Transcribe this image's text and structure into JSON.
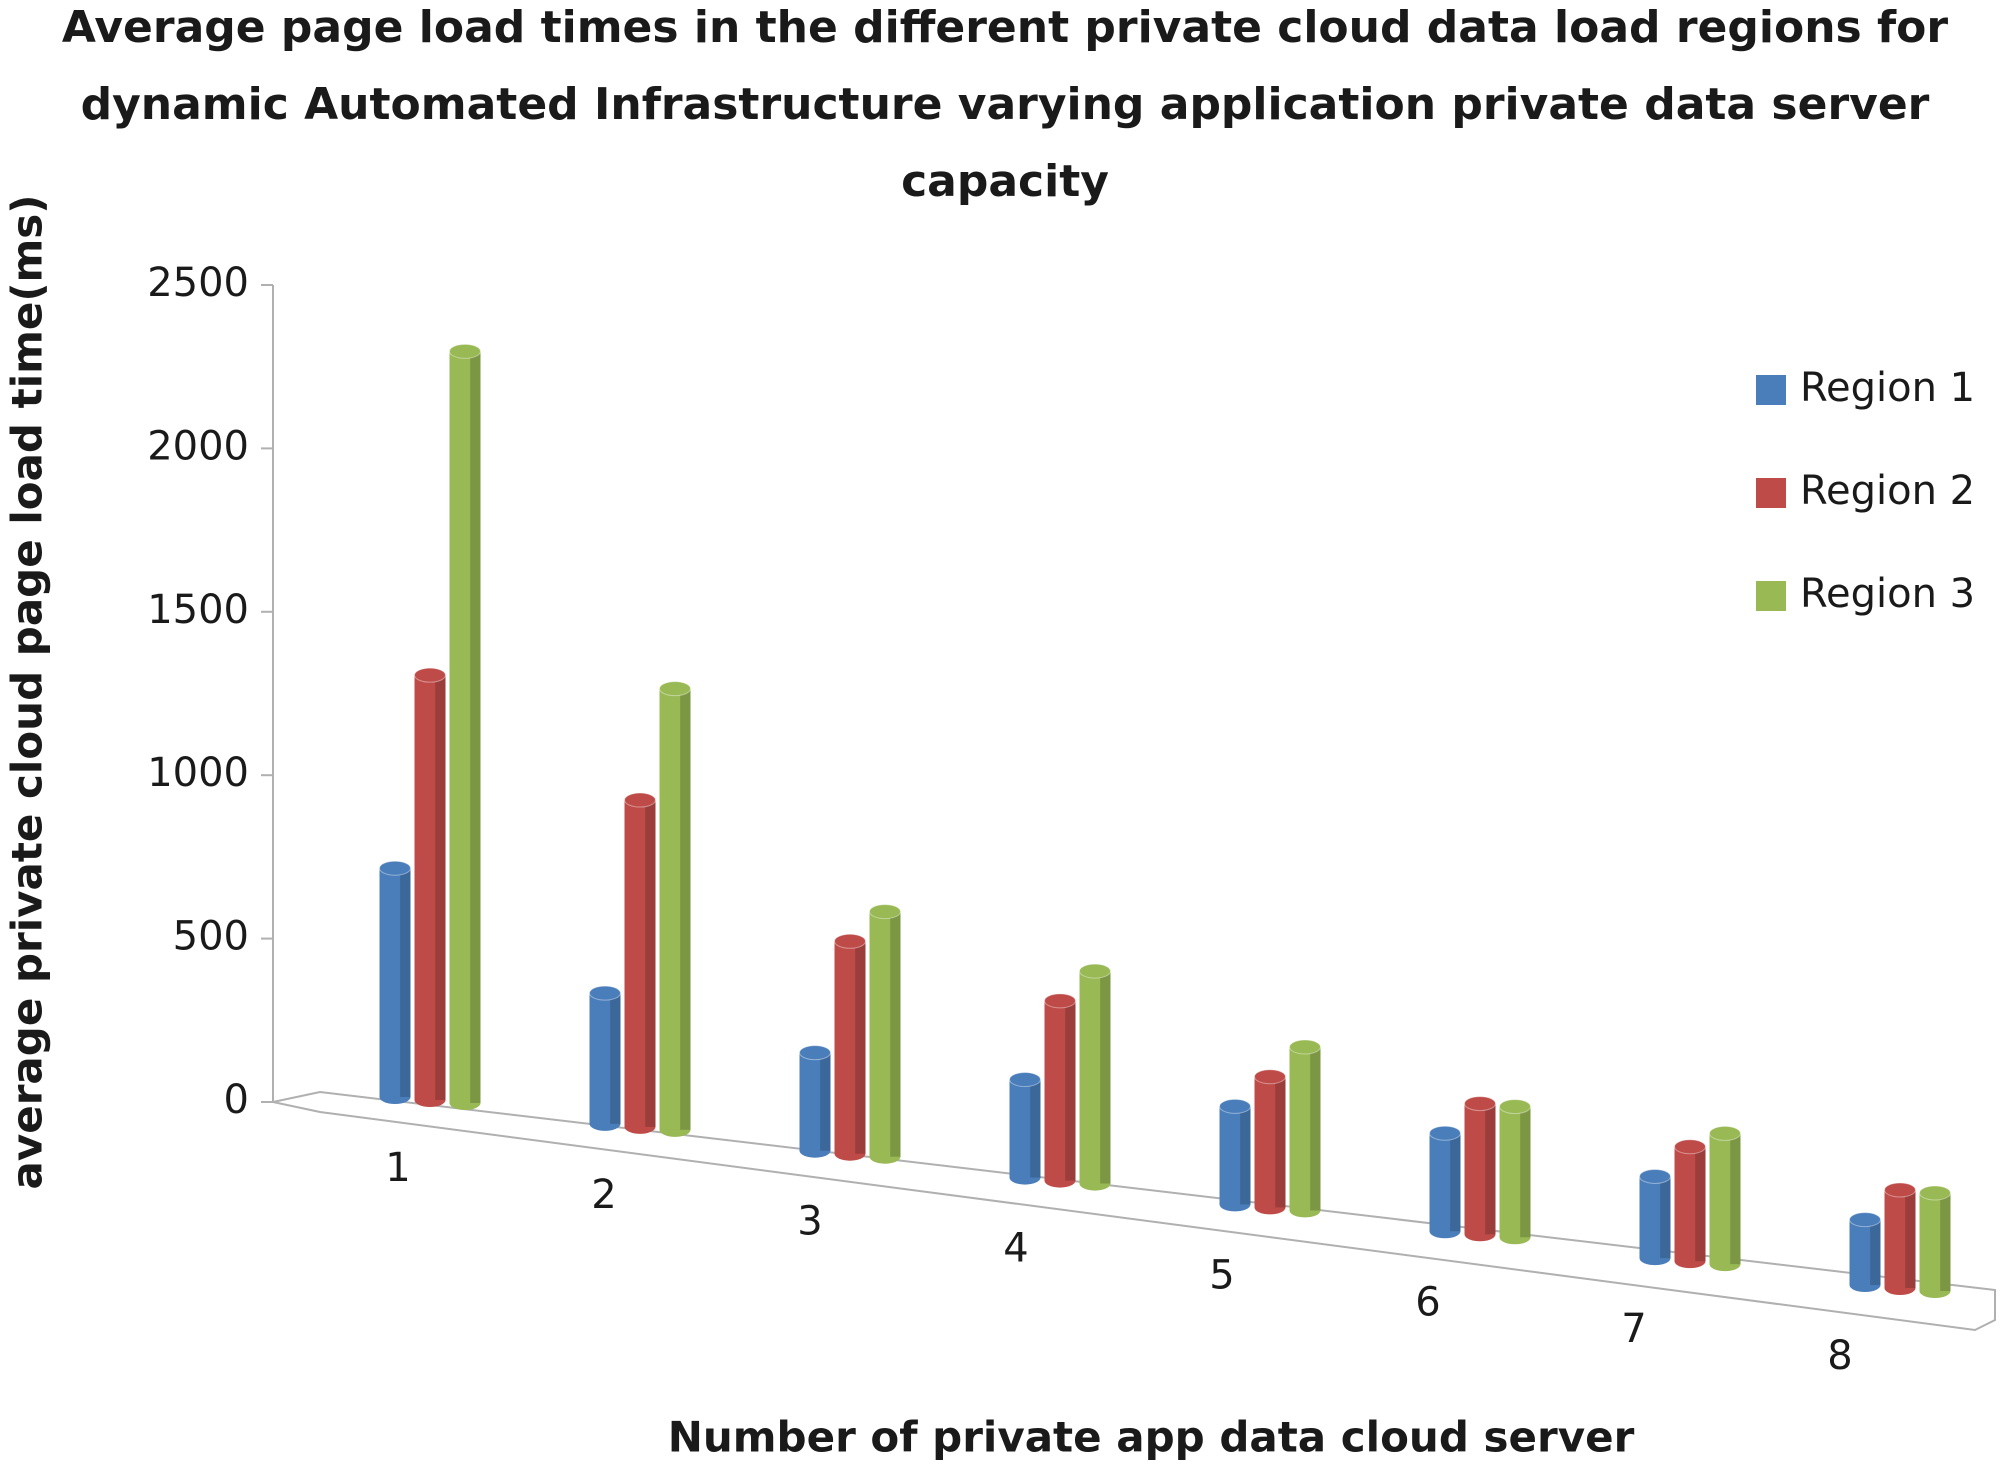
{
  "chart_data": {
    "type": "bar",
    "title": [
      "Average page load times in the different  private cloud data load regions for",
      "dynamic Automated Infrastructure   varying application private data server",
      "capacity"
    ],
    "x_label": "Number of private app data cloud server",
    "y_label": "average private cloud page load time(ms)",
    "categories": [
      "1",
      "2",
      "3",
      "4",
      "5",
      "6",
      "7",
      "8"
    ],
    "series": [
      {
        "name": "Region 1",
        "color": "#4a7ebb",
        "values": [
          700,
          400,
          300,
          300,
          300,
          300,
          250,
          200
        ]
      },
      {
        "name": "Region 2",
        "color": "#be4b48",
        "values": [
          1300,
          1000,
          650,
          550,
          400,
          400,
          350,
          300
        ]
      },
      {
        "name": "Region 3",
        "color": "#98b954",
        "values": [
          2300,
          1350,
          750,
          650,
          500,
          400,
          400,
          300
        ]
      }
    ],
    "ylim": [
      0,
      2500
    ],
    "yticks": [
      0,
      500,
      1000,
      1500,
      2000,
      2500
    ],
    "legend": "right"
  }
}
